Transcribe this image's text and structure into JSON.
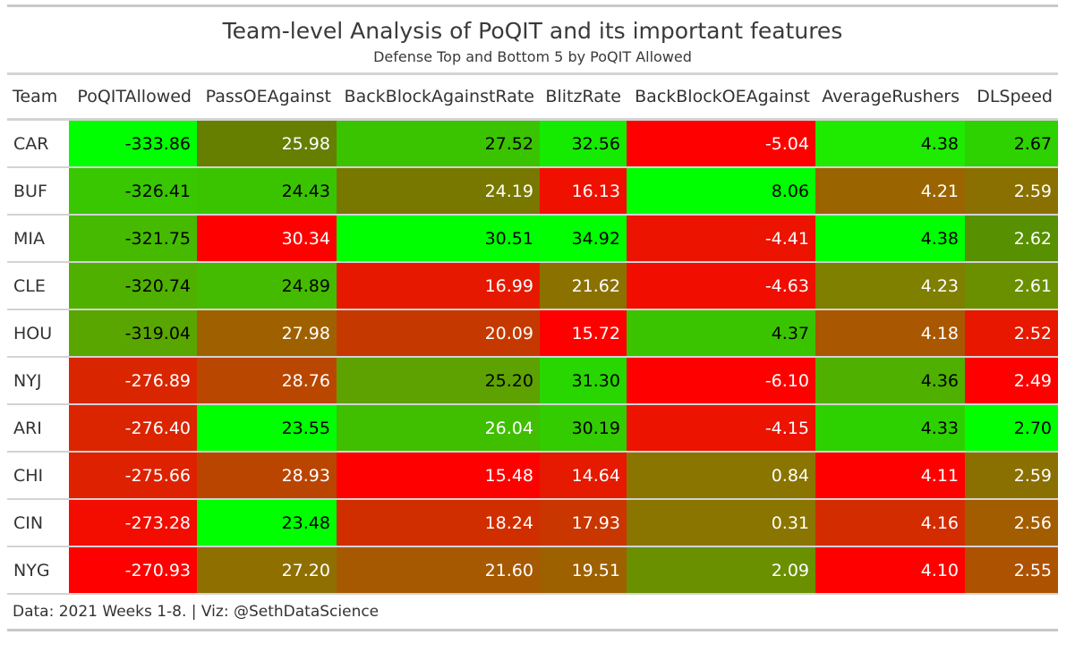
{
  "title": "Team-level Analysis of PoQIT and its important features",
  "subtitle": "Defense Top and Bottom 5 by PoQIT Allowed",
  "source_note": "Data: 2021 Weeks 1-8. | Viz: @SethDataScience",
  "chart_data": {
    "type": "table",
    "columns": [
      "Team",
      "PoQITAllowed",
      "PassOEAgainst",
      "BackBlockAgainstRate",
      "BlitzRate",
      "BackBlockOEAgainst",
      "AverageRushers",
      "DLSpeed"
    ],
    "rows": [
      {
        "team": "CAR",
        "values": [
          "-333.86",
          "25.98",
          "27.52",
          "32.56",
          "-5.04",
          "4.38",
          "2.67"
        ],
        "colors": [
          "#00ff00",
          "#667f00",
          "#3ac400",
          "#14eb00",
          "#ff0000",
          "#1eeb00",
          "#2dd200"
        ],
        "text": [
          "#000000",
          "#ffffff",
          "#000000",
          "#000000",
          "#ffffff",
          "#000000",
          "#000000"
        ]
      },
      {
        "team": "BUF",
        "values": [
          "-326.41",
          "24.43",
          "24.19",
          "16.13",
          "8.06",
          "4.21",
          "2.59"
        ],
        "colors": [
          "#38c700",
          "#3ac400",
          "#787800",
          "#ef1000",
          "#00ff00",
          "#9a6500",
          "#8a7000"
        ],
        "text": [
          "#000000",
          "#000000",
          "#ffffff",
          "#ffffff",
          "#000000",
          "#ffffff",
          "#ffffff"
        ]
      },
      {
        "team": "MIA",
        "values": [
          "-321.75",
          "30.34",
          "30.51",
          "34.92",
          "-4.41",
          "4.38",
          "2.62"
        ],
        "colors": [
          "#45ba00",
          "#ff0000",
          "#00ff00",
          "#00ff00",
          "#ec1300",
          "#00ff00",
          "#579000"
        ],
        "text": [
          "#000000",
          "#ffffff",
          "#000000",
          "#000000",
          "#ffffff",
          "#000000",
          "#ffffff"
        ]
      },
      {
        "team": "CLE",
        "values": [
          "-320.74",
          "24.89",
          "16.99",
          "21.62",
          "-4.63",
          "4.23",
          "2.61"
        ],
        "colors": [
          "#4fb000",
          "#44bb00",
          "#e61900",
          "#8b7200",
          "#f10e00",
          "#7f7f00",
          "#6a9000"
        ],
        "text": [
          "#000000",
          "#000000",
          "#ffffff",
          "#ffffff",
          "#ffffff",
          "#ffffff",
          "#ffffff"
        ]
      },
      {
        "team": "HOU",
        "values": [
          "-319.04",
          "27.98",
          "20.09",
          "15.72",
          "4.37",
          "4.18",
          "2.52"
        ],
        "colors": [
          "#59a600",
          "#9f6100",
          "#c53900",
          "#ff0000",
          "#3ac400",
          "#a95700",
          "#e81700"
        ],
        "text": [
          "#000000",
          "#ffffff",
          "#ffffff",
          "#ffffff",
          "#000000",
          "#ffffff",
          "#ffffff"
        ]
      },
      {
        "team": "NYJ",
        "values": [
          "-276.89",
          "28.76",
          "25.20",
          "31.30",
          "-6.10",
          "4.36",
          "2.49"
        ],
        "colors": [
          "#d92600",
          "#b94700",
          "#5da200",
          "#28d600",
          "#ff0000",
          "#4fb000",
          "#ff0000"
        ],
        "text": [
          "#ffffff",
          "#ffffff",
          "#000000",
          "#000000",
          "#ffffff",
          "#000000",
          "#ffffff"
        ]
      },
      {
        "team": "ARI",
        "values": [
          "-276.40",
          "23.55",
          "26.04",
          "30.19",
          "-4.15",
          "4.33",
          "2.70"
        ],
        "colors": [
          "#db2400",
          "#00ff00",
          "#3fbf00",
          "#32cc00",
          "#ec1300",
          "#2ed100",
          "#00ff00"
        ],
        "text": [
          "#ffffff",
          "#000000",
          "#ffffff",
          "#000000",
          "#ffffff",
          "#000000",
          "#000000"
        ]
      },
      {
        "team": "CHI",
        "values": [
          "-275.66",
          "28.93",
          "15.48",
          "14.64",
          "0.84",
          "4.11",
          "2.59"
        ],
        "colors": [
          "#de2100",
          "#ba4500",
          "#ff0000",
          "#e51a00",
          "#8a7500",
          "#ff0000",
          "#8a7000"
        ],
        "text": [
          "#ffffff",
          "#ffffff",
          "#ffffff",
          "#ffffff",
          "#ffffff",
          "#ffffff",
          "#ffffff"
        ]
      },
      {
        "team": "CIN",
        "values": [
          "-273.28",
          "23.48",
          "18.24",
          "17.93",
          "0.31",
          "4.16",
          "2.56"
        ],
        "colors": [
          "#f20d00",
          "#00ff00",
          "#d12e00",
          "#c93600",
          "#8a7500",
          "#d32c00",
          "#a25d00"
        ],
        "text": [
          "#ffffff",
          "#000000",
          "#ffffff",
          "#ffffff",
          "#ffffff",
          "#ffffff",
          "#ffffff"
        ]
      },
      {
        "team": "NYG",
        "values": [
          "-270.93",
          "27.20",
          "21.60",
          "19.51",
          "2.09",
          "4.10",
          "2.55"
        ],
        "colors": [
          "#ff0000",
          "#8f6f00",
          "#a65900",
          "#9e6100",
          "#6a9000",
          "#ff0000",
          "#ad5200"
        ],
        "text": [
          "#ffffff",
          "#ffffff",
          "#ffffff",
          "#ffffff",
          "#ffffff",
          "#ffffff",
          "#ffffff"
        ]
      }
    ]
  }
}
